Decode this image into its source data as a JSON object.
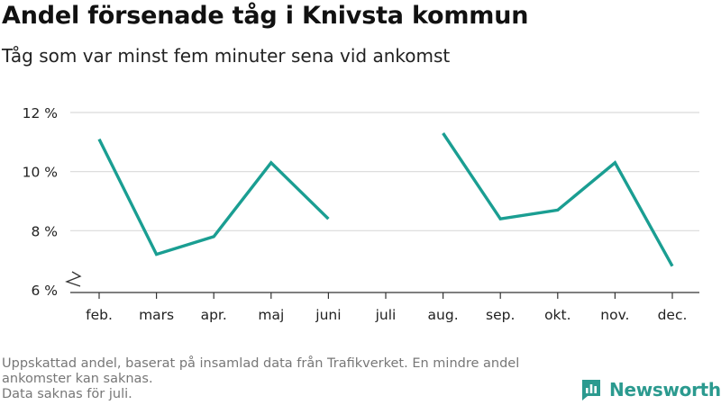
{
  "header": {
    "title": "Andel försenade tåg i Knivsta kommun",
    "subtitle": "Tåg som var minst fem minuter sena vid ankomst"
  },
  "footnote": {
    "line1": "Uppskattad andel, baserat på insamlad data från Trafikverket. En mindre andel",
    "line2": "ankomster kan saknas.",
    "line3": "Data saknas för juli."
  },
  "brand": {
    "name": "Newsworthy",
    "color": "#2b9a8f",
    "logo_icon": "bar-chart-icon"
  },
  "chart_data": {
    "type": "line",
    "categories": [
      "feb.",
      "mars",
      "apr.",
      "maj",
      "juni",
      "juli",
      "aug.",
      "sep.",
      "okt.",
      "nov.",
      "dec."
    ],
    "series": [
      {
        "values": [
          11.1,
          7.2,
          7.8,
          10.3,
          8.4,
          null,
          11.3,
          8.4,
          8.7,
          10.3,
          6.8
        ],
        "color": "#1a9e92"
      }
    ],
    "yticks": [
      6,
      8,
      10,
      12
    ],
    "ytick_labels": [
      "6 %",
      "8 %",
      "10 %",
      "12 %"
    ],
    "ylim": [
      6,
      12
    ],
    "y_axis_break": true,
    "grid": true,
    "legend": "none"
  }
}
